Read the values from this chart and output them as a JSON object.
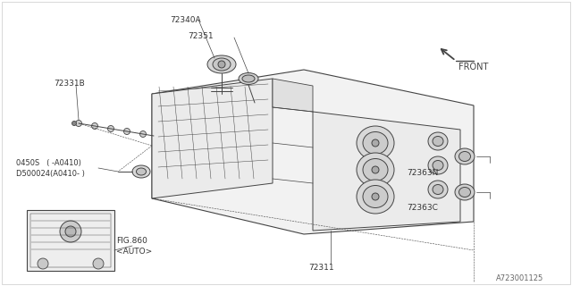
{
  "bg_color": "#ffffff",
  "line_color": "#444444",
  "part_fill": "#e8e8e8",
  "label_texts": {
    "72340A": "72340A",
    "72351": "72351",
    "72331B": "72331B",
    "0450S": "0450S   ( -A0410)",
    "D500024": "D500024(A0410- )",
    "FIG860": "FIG.860",
    "AUTO_text": "<AUTO>",
    "72363N": "72363N",
    "72363C": "72363C",
    "72311": "72311",
    "FRONT": "FRONT",
    "watermark": "A723001125"
  },
  "fig_width": 6.4,
  "fig_height": 3.2,
  "dpi": 100
}
